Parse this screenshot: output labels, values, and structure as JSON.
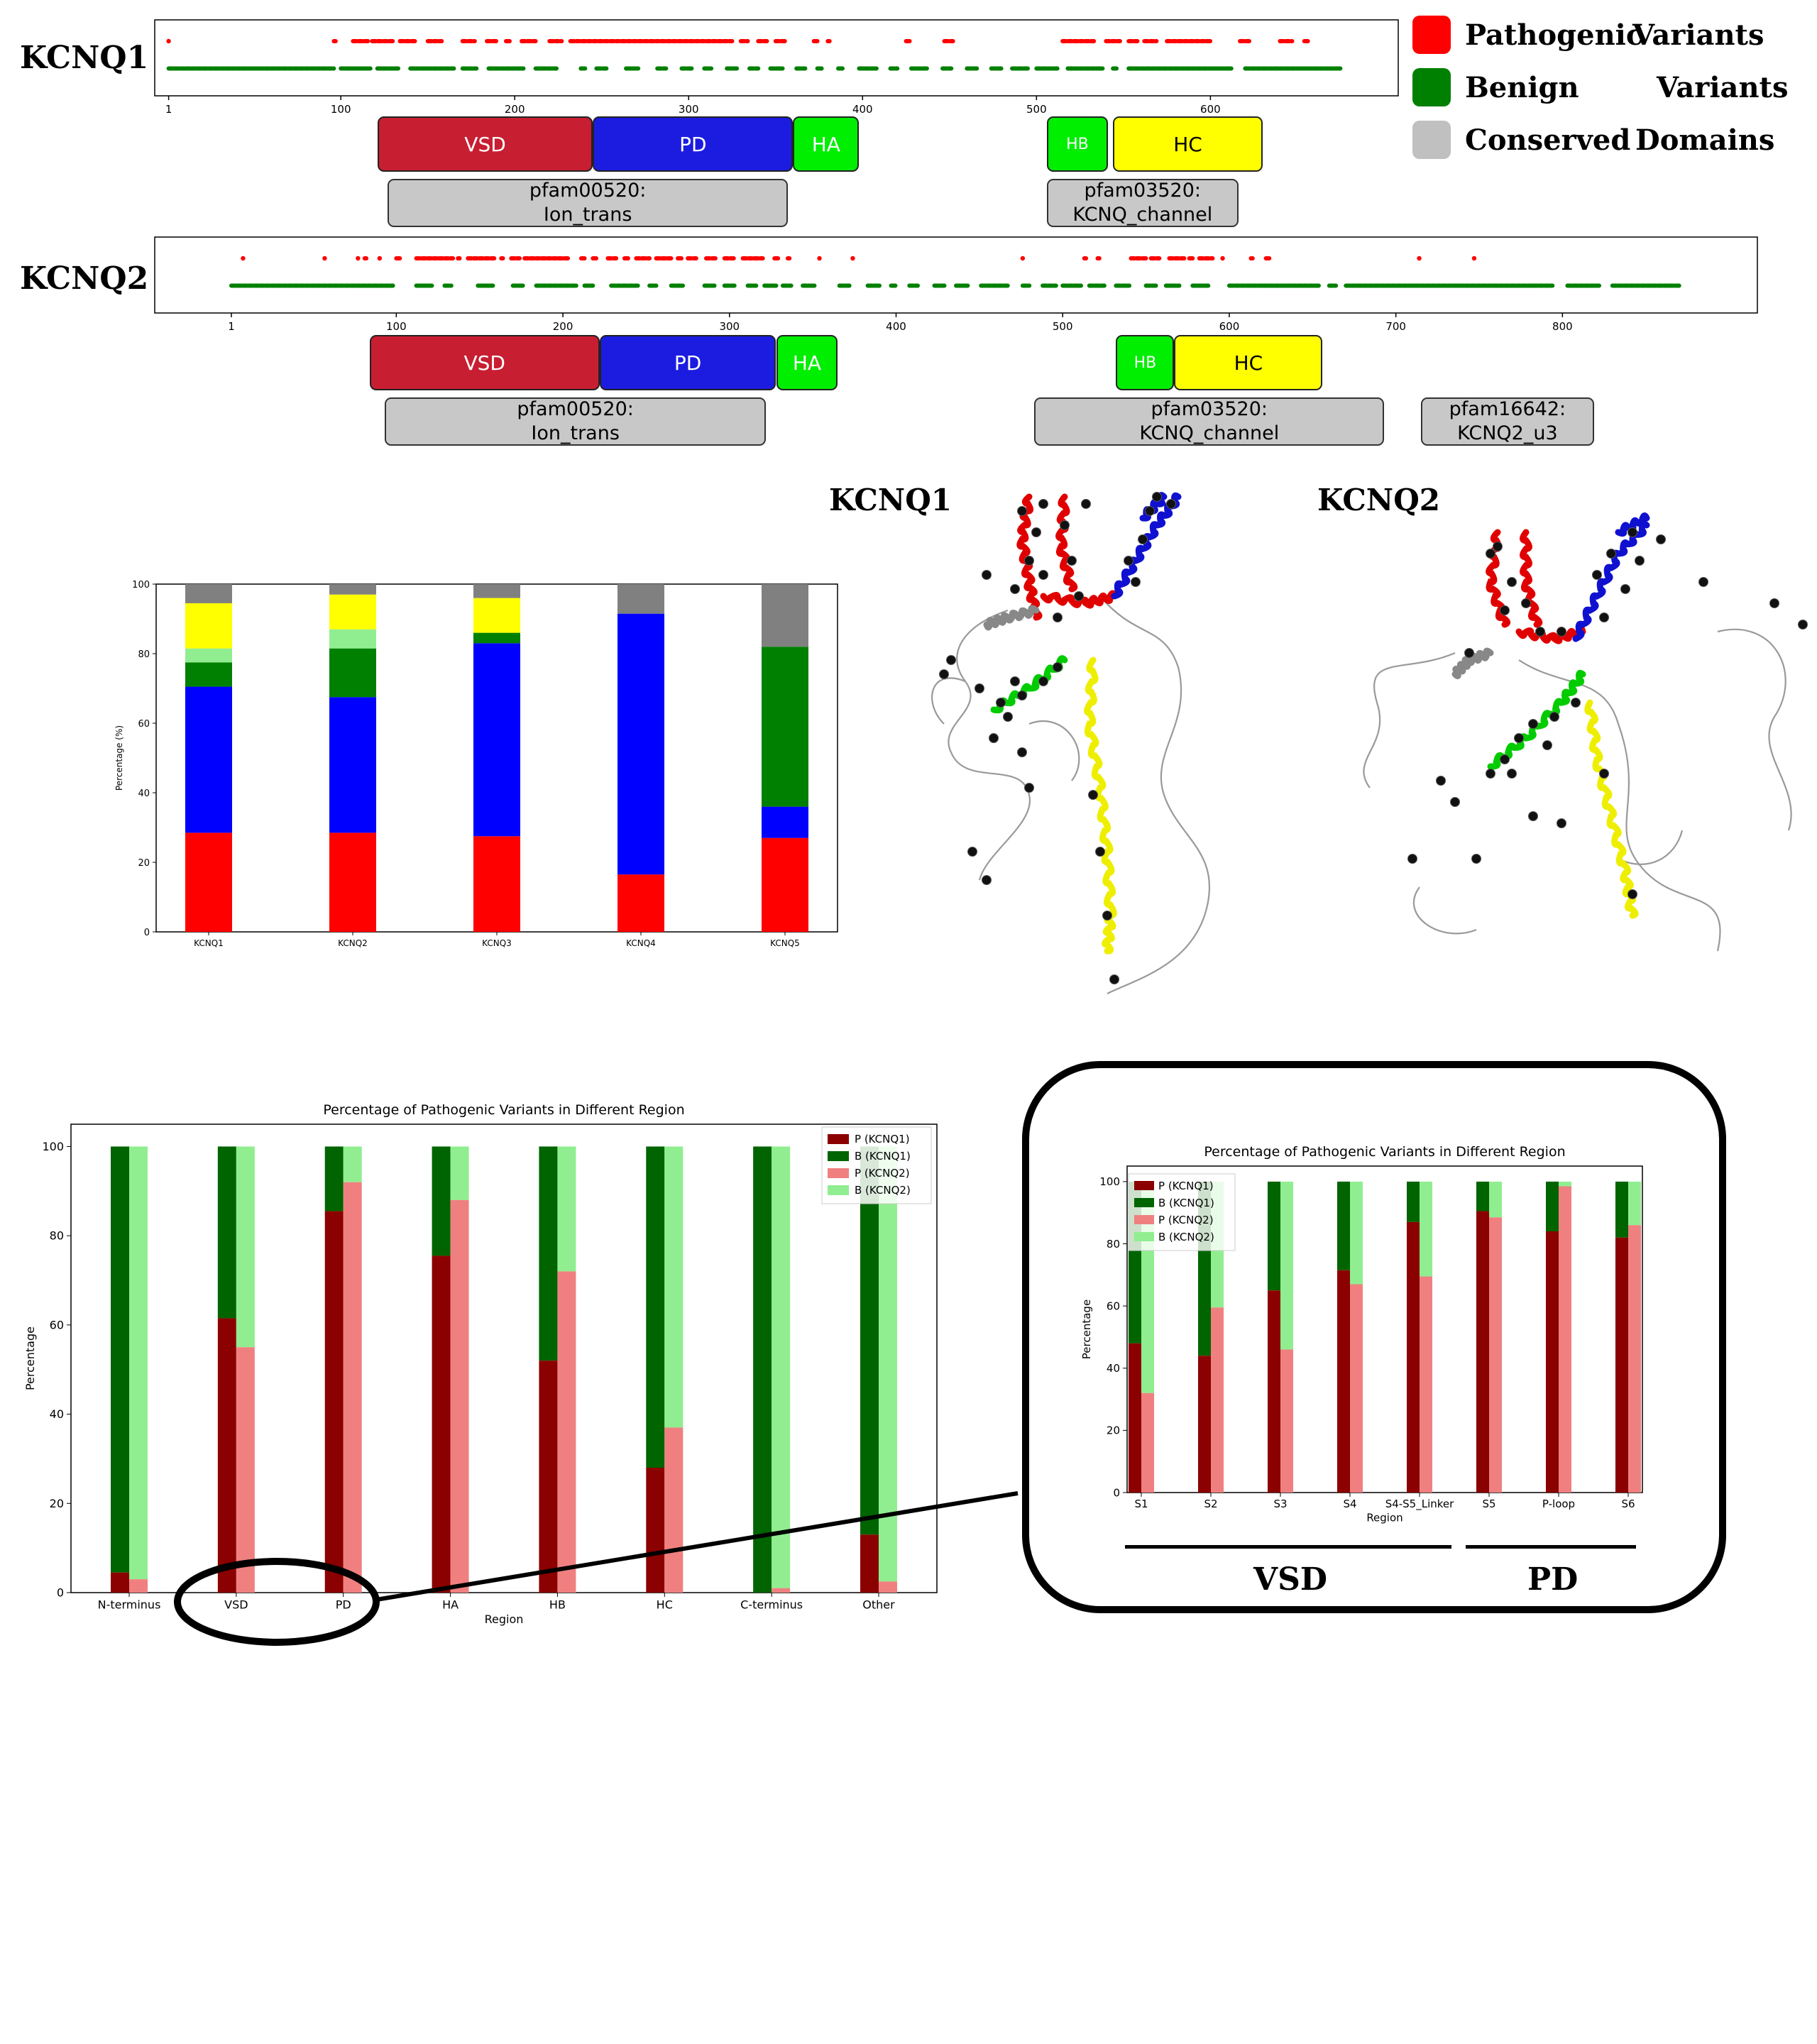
{
  "legend": {
    "items": [
      {
        "label_a": "Pathogenic",
        "label_b": "Variants",
        "color": "#ff0000"
      },
      {
        "label_a": "Benign",
        "label_b": "Variants",
        "color": "#008000"
      },
      {
        "label_a": "Conserved",
        "label_b": "Domains",
        "color": "#c0c0c0"
      }
    ]
  },
  "tracks": {
    "kcnq1": {
      "gene": "KCNQ1",
      "x_ticks": [
        1,
        100,
        200,
        300,
        400,
        500,
        600
      ],
      "x_range": [
        -7,
        708
      ],
      "pathogenic_segments": [
        [
          1,
          1
        ],
        [
          96,
          97
        ],
        [
          107,
          116
        ],
        [
          118,
          131
        ],
        [
          134,
          143
        ],
        [
          150,
          158
        ],
        [
          170,
          177
        ],
        [
          184,
          190
        ],
        [
          195,
          198
        ],
        [
          204,
          212
        ],
        [
          220,
          227
        ],
        [
          232,
          325
        ],
        [
          330,
          334
        ],
        [
          340,
          345
        ],
        [
          350,
          356
        ],
        [
          372,
          374
        ],
        [
          380,
          381
        ],
        [
          425,
          428
        ],
        [
          447,
          452
        ],
        [
          515,
          533
        ],
        [
          540,
          548
        ],
        [
          553,
          558
        ],
        [
          562,
          569
        ],
        [
          575,
          600
        ],
        [
          617,
          623
        ],
        [
          640,
          647
        ],
        [
          654,
          657
        ]
      ],
      "benign_segments": [
        [
          1,
          96
        ],
        [
          100,
          117
        ],
        [
          121,
          133
        ],
        [
          140,
          165
        ],
        [
          170,
          178
        ],
        [
          185,
          205
        ],
        [
          212,
          224
        ],
        [
          238,
          241
        ],
        [
          247,
          253
        ],
        [
          264,
          271
        ],
        [
          282,
          287
        ],
        [
          296,
          302
        ],
        [
          309,
          313
        ],
        [
          322,
          328
        ],
        [
          335,
          340
        ],
        [
          347,
          354
        ],
        [
          362,
          367
        ],
        [
          374,
          377
        ],
        [
          386,
          389
        ],
        [
          398,
          408
        ],
        [
          416,
          420
        ],
        [
          428,
          437
        ],
        [
          446,
          451
        ],
        [
          460,
          466
        ],
        [
          474,
          480
        ],
        [
          486,
          495
        ],
        [
          500,
          512
        ],
        [
          518,
          538
        ],
        [
          544,
          546
        ],
        [
          553,
          612
        ],
        [
          620,
          675
        ]
      ],
      "domains": [
        {
          "label": "VSD",
          "start": 121,
          "end": 245,
          "color": "#c81e32",
          "text_color": "#ffffff"
        },
        {
          "label": "PD",
          "start": 245,
          "end": 360,
          "color": "#1c1ce0",
          "text_color": "#ffffff"
        },
        {
          "label": "HA",
          "start": 360,
          "end": 398,
          "color": "#00ee00",
          "text_color": "#ffffff"
        },
        {
          "label": "HB",
          "start": 506,
          "end": 541,
          "color": "#00ee00",
          "text_color": "#ffffff"
        },
        {
          "label": "HC",
          "start": 544,
          "end": 630,
          "color": "#ffff00",
          "text_color": "#000000"
        }
      ],
      "pfam": [
        {
          "line1": "pfam00520:",
          "line2": "Ion_trans",
          "start": 127,
          "end": 357
        },
        {
          "line1": "pfam03520:",
          "line2": "KCNQ_channel",
          "start": 506,
          "end": 616
        }
      ]
    },
    "kcnq2": {
      "gene": "KCNQ2",
      "x_ticks": [
        1,
        100,
        200,
        300,
        400,
        500,
        600,
        700,
        800
      ],
      "x_range": [
        -45,
        917
      ],
      "pathogenic_segments": [
        [
          8,
          8
        ],
        [
          57,
          57
        ],
        [
          77,
          77
        ],
        [
          81,
          82
        ],
        [
          90,
          90
        ],
        [
          100,
          103
        ],
        [
          112,
          134
        ],
        [
          137,
          138
        ],
        [
          143,
          159
        ],
        [
          163,
          164
        ],
        [
          169,
          174
        ],
        [
          177,
          204
        ],
        [
          211,
          213
        ],
        [
          218,
          220
        ],
        [
          227,
          232
        ],
        [
          237,
          240
        ],
        [
          244,
          252
        ],
        [
          256,
          265
        ],
        [
          269,
          272
        ],
        [
          275,
          280
        ],
        [
          286,
          292
        ],
        [
          297,
          303
        ],
        [
          308,
          320
        ],
        [
          327,
          330
        ],
        [
          335,
          336
        ],
        [
          354,
          354
        ],
        [
          374,
          374
        ],
        [
          476,
          476
        ],
        [
          513,
          514
        ],
        [
          521,
          522
        ],
        [
          541,
          550
        ],
        [
          553,
          558
        ],
        [
          564,
          573
        ],
        [
          576,
          578
        ],
        [
          582,
          590
        ],
        [
          596,
          596
        ],
        [
          613,
          614
        ],
        [
          622,
          624
        ],
        [
          714,
          714
        ],
        [
          747,
          747
        ]
      ],
      "benign_segments": [
        [
          1,
          98
        ],
        [
          112,
          122
        ],
        [
          129,
          133
        ],
        [
          149,
          158
        ],
        [
          170,
          176
        ],
        [
          184,
          208
        ],
        [
          213,
          218
        ],
        [
          229,
          245
        ],
        [
          252,
          256
        ],
        [
          265,
          272
        ],
        [
          285,
          291
        ],
        [
          297,
          303
        ],
        [
          311,
          316
        ],
        [
          321,
          328
        ],
        [
          332,
          337
        ],
        [
          344,
          351
        ],
        [
          366,
          372
        ],
        [
          383,
          390
        ],
        [
          397,
          400
        ],
        [
          408,
          413
        ],
        [
          423,
          429
        ],
        [
          436,
          443
        ],
        [
          451,
          467
        ],
        [
          476,
          480
        ],
        [
          488,
          496
        ],
        [
          500,
          511
        ],
        [
          516,
          525
        ],
        [
          532,
          540
        ],
        [
          550,
          556
        ],
        [
          562,
          570
        ],
        [
          578,
          588
        ],
        [
          600,
          654
        ],
        [
          660,
          664
        ],
        [
          670,
          794
        ],
        [
          803,
          822
        ],
        [
          830,
          870
        ]
      ],
      "domains": [
        {
          "label": "VSD",
          "start": 84,
          "end": 222,
          "color": "#c81e32",
          "text_color": "#ffffff"
        },
        {
          "label": "PD",
          "start": 222,
          "end": 328,
          "color": "#1c1ce0",
          "text_color": "#ffffff"
        },
        {
          "label": "HA",
          "start": 328,
          "end": 365,
          "color": "#00ee00",
          "text_color": "#ffffff"
        },
        {
          "label": "HB",
          "start": 532,
          "end": 567,
          "color": "#00ee00",
          "text_color": "#ffffff"
        },
        {
          "label": "HC",
          "start": 567,
          "end": 656,
          "color": "#ffff00",
          "text_color": "#000000"
        }
      ],
      "pfam": [
        {
          "line1": "pfam00520:",
          "line2": "Ion_trans",
          "start": 93,
          "end": 322
        },
        {
          "line1": "pfam03520:",
          "line2": "KCNQ_channel",
          "start": 483,
          "end": 693
        },
        {
          "line1": "pfam16642:",
          "line2": "KCNQ2_u3",
          "start": 715,
          "end": 819
        }
      ]
    }
  },
  "stacked": {
    "ylabel": "Percentage (%)",
    "ylim": [
      0,
      100
    ],
    "yticks": [
      0,
      20,
      40,
      60,
      80,
      100
    ],
    "categories": [
      "KCNQ1",
      "KCNQ2",
      "KCNQ3",
      "KCNQ4",
      "KCNQ5"
    ],
    "series": [
      {
        "color": "#ff0000",
        "values": [
          28.5,
          28.5,
          27.5,
          16.5,
          27
        ]
      },
      {
        "color": "#0000ff",
        "values": [
          42,
          39,
          55.5,
          75,
          9
        ]
      },
      {
        "color": "#008000",
        "values": [
          7,
          14,
          3,
          0,
          46
        ]
      },
      {
        "color": "#90ee90",
        "values": [
          4,
          5.5,
          0,
          0,
          0
        ]
      },
      {
        "color": "#ffff00",
        "values": [
          13,
          10,
          10,
          0,
          0
        ]
      },
      {
        "color": "#808080",
        "values": [
          5.5,
          3,
          4,
          8.5,
          18
        ]
      }
    ]
  },
  "structures": {
    "left_label": "KCNQ1",
    "right_label": "KCNQ2"
  },
  "region_chart": {
    "title": "Percentage of Pathogenic Variants in Different Region",
    "xlabel": "Region",
    "ylabel": "Percentage",
    "ylim": [
      0,
      105
    ],
    "yticks": [
      0,
      20,
      40,
      60,
      80,
      100
    ],
    "categories": [
      "N-terminus",
      "VSD",
      "PD",
      "HA",
      "HB",
      "HC",
      "C-terminus",
      "Other"
    ],
    "legend": [
      "P (KCNQ1)",
      "B (KCNQ1)",
      "P (KCNQ2)",
      "B (KCNQ2)"
    ],
    "colors": {
      "p1": "#8b0000",
      "b1": "#006400",
      "p2": "#f08080",
      "b2": "#90ee90"
    },
    "p_kcnq1": [
      4.5,
      61.5,
      85.5,
      75.5,
      52,
      28,
      0,
      13
    ],
    "p_kcnq2": [
      3,
      55,
      92,
      88,
      72,
      37,
      1,
      2.5
    ]
  },
  "inset_chart": {
    "title": "Percentage of Pathogenic Variants in Different Region",
    "xlabel": "Region",
    "ylabel": "Percentage",
    "ylim": [
      0,
      105
    ],
    "yticks": [
      0,
      20,
      40,
      60,
      80,
      100
    ],
    "categories": [
      "S1",
      "S2",
      "S3",
      "S4",
      "S4-S5_Linker",
      "S5",
      "P-loop",
      "S6"
    ],
    "legend": [
      "P (KCNQ1)",
      "B (KCNQ1)",
      "P (KCNQ2)",
      "B (KCNQ2)"
    ],
    "p_kcnq1": [
      48,
      44,
      65,
      71.5,
      87,
      90.5,
      84,
      82
    ],
    "p_kcnq2": [
      32,
      59.5,
      46,
      67,
      69.5,
      88.5,
      98.5,
      86
    ],
    "group_labels": [
      "VSD",
      "PD"
    ]
  }
}
